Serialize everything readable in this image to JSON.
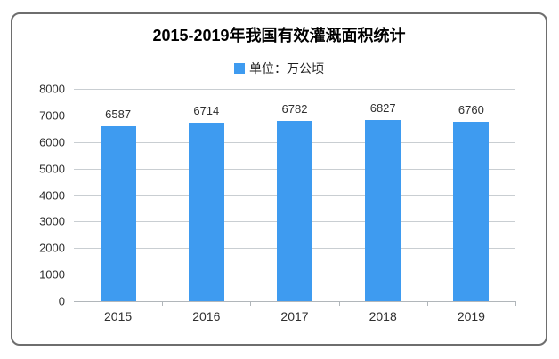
{
  "chart_data": {
    "type": "bar",
    "title": "2015-2019年我国有效灌溉面积统计",
    "legend_label": "单位：万公顷",
    "legend_position": "top-center",
    "categories": [
      "2015",
      "2016",
      "2017",
      "2018",
      "2019"
    ],
    "values": [
      6587,
      6714,
      6782,
      6827,
      6760
    ],
    "xlabel": "",
    "ylabel": "",
    "ylim": [
      0,
      8000
    ],
    "yticks": [
      0,
      1000,
      2000,
      3000,
      4000,
      5000,
      6000,
      7000,
      8000
    ],
    "grid": true,
    "bar_color": "#3E9BF0",
    "grid_color": "#c9ced2",
    "axis_color": "#b1b6ba",
    "label_color": "#2f2f2f",
    "card_border_color": "#6e6e6e"
  }
}
